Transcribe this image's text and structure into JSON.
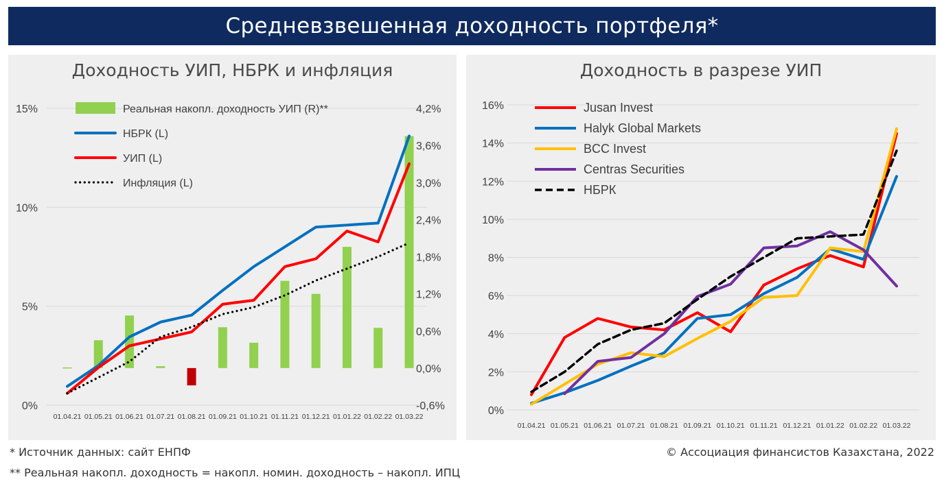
{
  "header": {
    "title": "Средневзвешенная доходность портфеля*"
  },
  "footnotes": {
    "source": "* Источник данных: сайт ЕНПФ",
    "real_def": "** Реальная накопл. доходность = накопл. номин. доходность – накопл. ИПЦ",
    "copyright": "© Ассоциация финансистов Казахстана, 2022"
  },
  "colors": {
    "panel_bg": "#efefef",
    "banner_bg": "#0f2a5e",
    "bar_positive": "#92d050",
    "bar_negative": "#c00000",
    "nbrk": "#0070c0",
    "uip": "#ff0000",
    "inflation": "#000000",
    "jusan": "#ff0000",
    "halyk": "#0070c0",
    "bcc": "#ffc000",
    "centras": "#7030a0"
  },
  "chart_data": [
    {
      "type": "bar+line",
      "title": "Доходность УИП, НБРК и инфляция",
      "categories": [
        "01.04.21",
        "01.05.21",
        "01.06.21",
        "01.07.21",
        "01.08.21",
        "01.09.21",
        "01.10.21",
        "01.11.21",
        "01.12.21",
        "01.01.22",
        "01.02.22",
        "01.03.22"
      ],
      "y_left": {
        "ticks": [
          0,
          5,
          10,
          15
        ],
        "tick_labels": [
          "0%",
          "5%",
          "10%",
          "15%"
        ],
        "range": [
          0,
          15
        ]
      },
      "y_right": {
        "ticks": [
          -0.6,
          0,
          0.6,
          1.2,
          1.8,
          2.4,
          3.0,
          3.6,
          4.2
        ],
        "tick_labels": [
          "-0,6%",
          "0,0%",
          "0,6%",
          "1,2%",
          "1,8%",
          "2,4%",
          "3,0%",
          "3,6%",
          "4,2%"
        ],
        "range": [
          -0.6,
          4.2
        ]
      },
      "grid": "horizontal",
      "legend_position": "top-left",
      "series": [
        {
          "name": "Реальная накопл. доходность УИП (R)**",
          "kind": "bar",
          "axis": "right",
          "color": "#92d050",
          "negative_color": "#c00000",
          "values": [
            0.01,
            0.45,
            0.85,
            0.03,
            -0.28,
            0.66,
            0.41,
            1.41,
            1.2,
            1.96,
            0.65,
            3.75
          ]
        },
        {
          "name": "НБРК (L)",
          "kind": "line",
          "axis": "left",
          "color": "#0070c0",
          "values": [
            0.95,
            2.0,
            3.45,
            4.2,
            4.55,
            5.8,
            7.0,
            8.0,
            9.0,
            9.1,
            9.2,
            13.6
          ]
        },
        {
          "name": "УИП (L)",
          "kind": "line",
          "axis": "left",
          "color": "#ff0000",
          "values": [
            0.6,
            1.9,
            3.0,
            3.35,
            3.7,
            5.1,
            5.3,
            7.0,
            7.4,
            8.8,
            8.25,
            12.2
          ]
        },
        {
          "name": "Инфляция (L)",
          "kind": "dotted",
          "axis": "left",
          "color": "#000000",
          "values": [
            0.6,
            1.4,
            2.2,
            3.45,
            3.95,
            4.6,
            4.95,
            5.55,
            6.3,
            6.9,
            7.5,
            8.2
          ]
        }
      ]
    },
    {
      "type": "line",
      "title": "Доходность в разрезе УИП",
      "categories": [
        "01.04.21",
        "01.05.21",
        "01.06.21",
        "01.07.21",
        "01.08.21",
        "01.09.21",
        "01.10.21",
        "01.11.21",
        "01.12.21",
        "01.01.22",
        "01.02.22",
        "01.03.22"
      ],
      "y": {
        "ticks": [
          0,
          2,
          4,
          6,
          8,
          10,
          12,
          14,
          16
        ],
        "tick_labels": [
          "0%",
          "2%",
          "4%",
          "6%",
          "8%",
          "10%",
          "12%",
          "14%",
          "16%"
        ],
        "range": [
          0,
          16
        ]
      },
      "grid": "horizontal",
      "legend_position": "top-left",
      "series": [
        {
          "name": "Jusan Invest",
          "kind": "line",
          "color": "#ff0000",
          "values": [
            0.8,
            3.8,
            4.8,
            4.35,
            4.2,
            5.1,
            4.1,
            6.55,
            7.4,
            8.1,
            7.5,
            14.5
          ]
        },
        {
          "name": "Halyk Global Markets",
          "kind": "line",
          "color": "#0070c0",
          "values": [
            0.35,
            0.9,
            1.55,
            2.3,
            3.0,
            4.8,
            5.0,
            6.1,
            6.95,
            8.45,
            7.9,
            12.25
          ]
        },
        {
          "name": "BCC Invest",
          "kind": "line",
          "color": "#ffc000",
          "values": [
            0.3,
            1.35,
            2.4,
            3.0,
            2.8,
            3.75,
            4.65,
            5.9,
            6.0,
            8.5,
            8.3,
            14.75
          ]
        },
        {
          "name": "Centras Securities",
          "kind": "line",
          "color": "#7030a0",
          "start_index": 1,
          "values": [
            null,
            0.85,
            2.55,
            2.75,
            4.0,
            5.95,
            6.6,
            8.5,
            8.6,
            9.35,
            8.4,
            6.5
          ]
        },
        {
          "name": "НБРК",
          "kind": "dashed",
          "color": "#000000",
          "values": [
            0.95,
            2.0,
            3.45,
            4.2,
            4.55,
            5.8,
            7.0,
            8.0,
            9.0,
            9.1,
            9.2,
            13.6
          ]
        }
      ]
    }
  ]
}
